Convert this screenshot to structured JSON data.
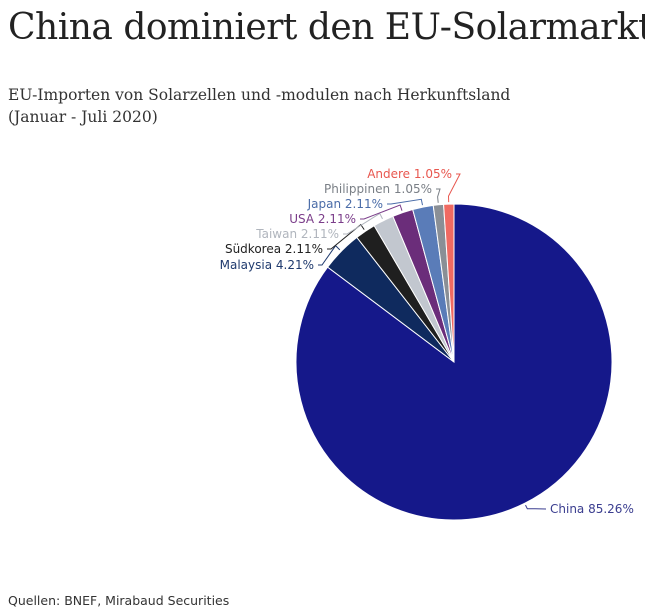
{
  "title": "China dominiert den EU-Solarmarkt",
  "subtitle_line1": "EU-Importen von Solarzellen und -modulen nach Herkunftsland",
  "subtitle_line2": "(Januar - Juli 2020)",
  "source": "Quellen: BNEF, Mirabaud Securities",
  "chart_data": {
    "type": "pie",
    "title": "China dominiert den EU-Solarmarkt",
    "subtitle": "EU-Importen von Solarzellen und -modulen nach Herkunftsland (Januar - Juli 2020)",
    "unit": "%",
    "start_angle_deg": 0,
    "direction": "clockwise",
    "slices": [
      {
        "name": "China",
        "value": 85.26,
        "label": "China 85.26%",
        "color": "#15188a",
        "label_color": "#3a3d8f"
      },
      {
        "name": "Malaysia",
        "value": 4.21,
        "label": "Malaysia 4.21%",
        "color": "#0f2a5e",
        "label_color": "#1f3a6e"
      },
      {
        "name": "Südkorea",
        "value": 2.11,
        "label": "Südkorea 2.11%",
        "color": "#1f1f1f",
        "label_color": "#222222"
      },
      {
        "name": "Taiwan",
        "value": 2.11,
        "label": "Taiwan 2.11%",
        "color": "#c2c7cf",
        "label_color": "#b0b5bd"
      },
      {
        "name": "USA",
        "value": 2.11,
        "label": "USA 2.11%",
        "color": "#6b2d7a",
        "label_color": "#7b3d8a"
      },
      {
        "name": "Japan",
        "value": 2.11,
        "label": "Japan 2.11%",
        "color": "#5a7cb8",
        "label_color": "#4a6ca8"
      },
      {
        "name": "Philippinen",
        "value": 1.05,
        "label": "Philippinen 1.05%",
        "color": "#8a8f96",
        "label_color": "#7a7f86"
      },
      {
        "name": "Andere",
        "value": 1.05,
        "label": "Andere 1.05%",
        "color": "#f06a62",
        "label_color": "#e8574f"
      }
    ]
  }
}
